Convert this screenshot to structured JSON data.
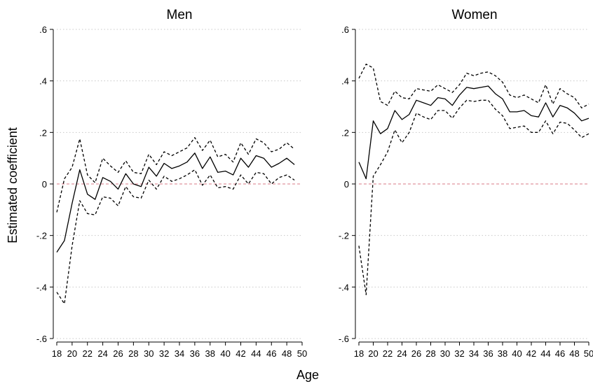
{
  "chart_data": {
    "type": "line",
    "ylabel": "Estimated coefficient",
    "xlabel": "Age",
    "ylim": [
      -0.6,
      0.6
    ],
    "xlim": [
      18,
      50
    ],
    "yticks": [
      -0.6,
      -0.4,
      -0.2,
      0,
      0.2,
      0.4,
      0.6
    ],
    "ytick_labels": [
      "-.6",
      "-.4",
      "-.2",
      "0",
      ".2",
      ".4",
      ".6"
    ],
    "xticks": [
      18,
      20,
      22,
      24,
      26,
      28,
      30,
      32,
      34,
      36,
      38,
      40,
      42,
      44,
      46,
      48,
      50
    ],
    "xtick_labels": [
      "18",
      "20",
      "22",
      "24",
      "26",
      "28",
      "30",
      "32",
      "34",
      "36",
      "38",
      "40",
      "42",
      "44",
      "46",
      "48",
      "50"
    ],
    "grid": true,
    "reference_line": 0,
    "colors": {
      "estimate": "#000000",
      "ci": "#000000",
      "reference": "#d87a86",
      "grid": "#c8c8c8",
      "axis": "#000000"
    },
    "panels": [
      {
        "title": "Men",
        "x": [
          18,
          19,
          20,
          21,
          22,
          23,
          24,
          25,
          26,
          27,
          28,
          29,
          30,
          31,
          32,
          33,
          34,
          35,
          36,
          37,
          38,
          39,
          40,
          41,
          42,
          43,
          44,
          45,
          46,
          47,
          48,
          49
        ],
        "series": [
          {
            "role": "estimate",
            "style": "solid",
            "values": [
              -0.265,
              -0.22,
              -0.075,
              0.055,
              -0.04,
              -0.06,
              0.025,
              0.01,
              -0.02,
              0.04,
              0.0,
              -0.01,
              0.065,
              0.03,
              0.08,
              0.06,
              0.07,
              0.085,
              0.12,
              0.06,
              0.105,
              0.045,
              0.05,
              0.035,
              0.1,
              0.065,
              0.11,
              0.1,
              0.065,
              0.08,
              0.1,
              0.075
            ]
          },
          {
            "role": "upper",
            "style": "dashed",
            "values": [
              -0.11,
              0.02,
              0.065,
              0.175,
              0.035,
              0.005,
              0.1,
              0.07,
              0.045,
              0.09,
              0.045,
              0.04,
              0.115,
              0.075,
              0.125,
              0.11,
              0.125,
              0.14,
              0.18,
              0.13,
              0.17,
              0.105,
              0.115,
              0.085,
              0.16,
              0.115,
              0.175,
              0.16,
              0.125,
              0.135,
              0.16,
              0.135
            ]
          },
          {
            "role": "lower",
            "style": "dashed",
            "values": [
              -0.42,
              -0.465,
              -0.24,
              -0.065,
              -0.115,
              -0.12,
              -0.05,
              -0.055,
              -0.085,
              -0.01,
              -0.05,
              -0.055,
              0.015,
              -0.02,
              0.03,
              0.01,
              0.02,
              0.035,
              0.055,
              -0.005,
              0.035,
              -0.015,
              -0.01,
              -0.02,
              0.035,
              0.0,
              0.045,
              0.04,
              0.0,
              0.025,
              0.035,
              0.015
            ]
          }
        ]
      },
      {
        "title": "Women",
        "x": [
          18,
          19,
          20,
          21,
          22,
          23,
          24,
          25,
          26,
          27,
          28,
          29,
          30,
          31,
          32,
          33,
          34,
          35,
          36,
          37,
          38,
          39,
          40,
          41,
          42,
          43,
          44,
          45,
          46,
          47,
          48,
          49,
          50
        ],
        "series": [
          {
            "role": "estimate",
            "style": "solid",
            "values": [
              0.085,
              0.02,
              0.245,
              0.195,
              0.215,
              0.285,
              0.25,
              0.27,
              0.325,
              0.315,
              0.305,
              0.335,
              0.33,
              0.305,
              0.345,
              0.375,
              0.37,
              0.375,
              0.38,
              0.35,
              0.33,
              0.28,
              0.28,
              0.285,
              0.265,
              0.26,
              0.315,
              0.26,
              0.305,
              0.295,
              0.275,
              0.245,
              0.255
            ]
          },
          {
            "role": "upper",
            "style": "dashed",
            "values": [
              0.41,
              0.465,
              0.45,
              0.32,
              0.305,
              0.36,
              0.335,
              0.33,
              0.37,
              0.365,
              0.36,
              0.385,
              0.37,
              0.355,
              0.385,
              0.43,
              0.42,
              0.43,
              0.435,
              0.42,
              0.395,
              0.345,
              0.335,
              0.345,
              0.33,
              0.315,
              0.385,
              0.31,
              0.37,
              0.35,
              0.335,
              0.295,
              0.31
            ]
          },
          {
            "role": "lower",
            "style": "dashed",
            "values": [
              -0.24,
              -0.43,
              0.03,
              0.075,
              0.125,
              0.21,
              0.16,
              0.2,
              0.275,
              0.26,
              0.25,
              0.285,
              0.285,
              0.255,
              0.295,
              0.325,
              0.32,
              0.325,
              0.325,
              0.29,
              0.265,
              0.215,
              0.22,
              0.225,
              0.2,
              0.2,
              0.245,
              0.195,
              0.24,
              0.235,
              0.21,
              0.18,
              0.195
            ]
          }
        ]
      }
    ]
  }
}
